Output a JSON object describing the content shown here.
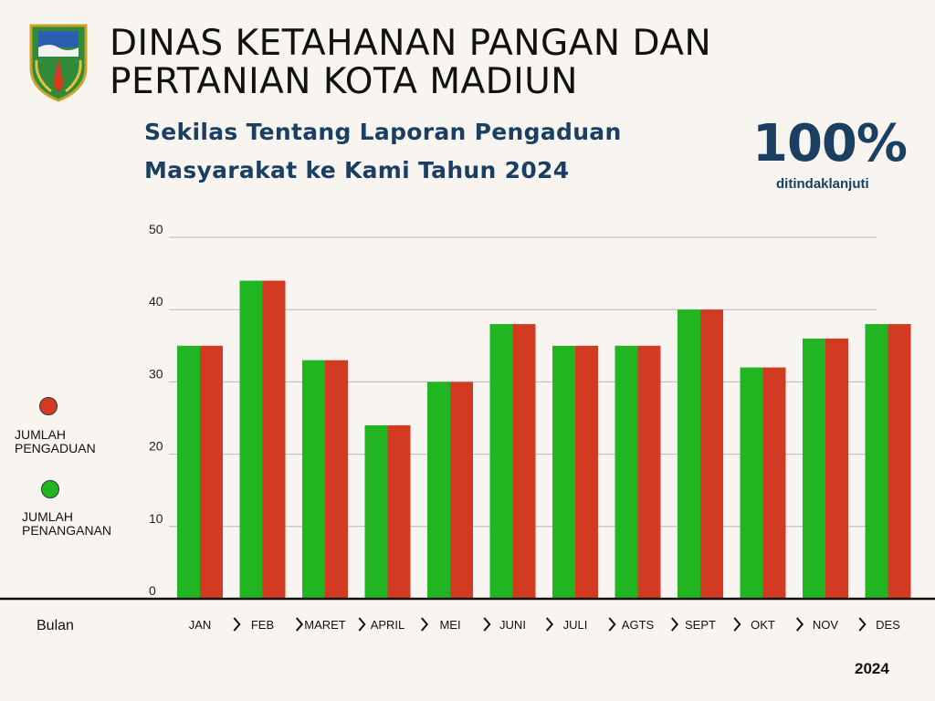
{
  "header": {
    "title_line1": "DINAS KETAHANAN PANGAN DAN",
    "title_line2": "PERTANIAN KOTA MADIUN",
    "subtitle_line1": "Sekilas Tentang Laporan Pengaduan",
    "subtitle_line2": "Masyarakat ke Kami Tahun 2024"
  },
  "stat": {
    "value": "100%",
    "label": "ditindaklanjuti"
  },
  "legend": {
    "items": [
      {
        "label_line1": "JUMLAH",
        "label_line2": "PENGADUAN",
        "color": "#d33a22"
      },
      {
        "label_line1": "JUMLAH",
        "label_line2": "PENANGANAN",
        "color": "#22b522"
      }
    ]
  },
  "year": "2024",
  "colors": {
    "complaints": "#d33a22",
    "handled": "#22b522",
    "navy": "#1b3f63"
  },
  "chart_data": {
    "type": "bar",
    "xlabel": "Bulan",
    "ylim": [
      0,
      50
    ],
    "yticks": [
      0,
      10,
      20,
      30,
      40,
      50
    ],
    "categories": [
      "JAN",
      "FEB",
      "MARET",
      "APRIL",
      "MEI",
      "JUNI",
      "JULI",
      "AGTS",
      "SEPT",
      "OKT",
      "NOV",
      "DES"
    ],
    "series": [
      {
        "name": "JUMLAH PENANGANAN",
        "color": "#22b522",
        "values": [
          35,
          44,
          33,
          24,
          30,
          38,
          35,
          35,
          40,
          32,
          36,
          38
        ]
      },
      {
        "name": "JUMLAH PENGADUAN",
        "color": "#d33a22",
        "values": [
          35,
          44,
          33,
          24,
          30,
          38,
          35,
          35,
          40,
          32,
          36,
          38
        ]
      }
    ],
    "grid": true
  }
}
